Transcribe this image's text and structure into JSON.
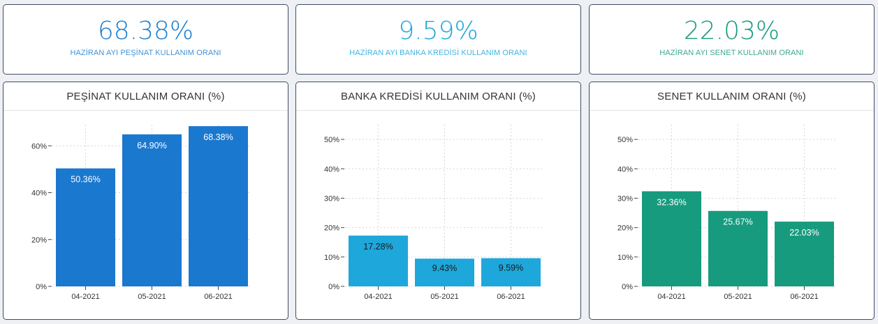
{
  "kpis": [
    {
      "value": "68.38%",
      "label": "HAZİRAN AYI PEŞİNAT KULLANIM ORANI",
      "color": "#1e7fd0"
    },
    {
      "value": "9.59%",
      "label": "HAZİRAN AYI BANKA KREDİSİ KULLANIM ORANI",
      "color": "#1ea7db"
    },
    {
      "value": "22.03%",
      "label": "HAZİRAN AYI SENET KULLANIM ORANI",
      "color": "#179b7e"
    }
  ],
  "chart_data": [
    {
      "type": "bar",
      "title": "PEŞİNAT KULLANIM ORANI (%)",
      "categories": [
        "04-2021",
        "05-2021",
        "06-2021"
      ],
      "values": [
        50.36,
        64.9,
        68.38
      ],
      "value_labels": [
        "50.36%",
        "64.90%",
        "68.38%"
      ],
      "yticks": [
        0,
        20,
        40,
        60
      ],
      "ytick_labels": [
        "0%",
        "20%",
        "40%",
        "60%"
      ],
      "ylim": [
        0,
        69
      ],
      "color": "#1b78cf",
      "grid": true
    },
    {
      "type": "bar",
      "title": "BANKA KREDİSİ KULLANIM ORANI (%)",
      "categories": [
        "04-2021",
        "05-2021",
        "06-2021"
      ],
      "values": [
        17.28,
        9.43,
        9.59
      ],
      "value_labels": [
        "17.28%",
        "9.43%",
        "9.59%"
      ],
      "yticks": [
        0,
        10,
        20,
        30,
        40,
        50
      ],
      "ytick_labels": [
        "0%",
        "10%",
        "20%",
        "30%",
        "40%",
        "50%"
      ],
      "ylim": [
        0,
        55
      ],
      "color": "#1ea7db",
      "grid": true
    },
    {
      "type": "bar",
      "title": "SENET KULLANIM ORANI (%)",
      "categories": [
        "04-2021",
        "05-2021",
        "06-2021"
      ],
      "values": [
        32.36,
        25.67,
        22.03
      ],
      "value_labels": [
        "32.36%",
        "25.67%",
        "22.03%"
      ],
      "yticks": [
        0,
        10,
        20,
        30,
        40,
        50
      ],
      "ytick_labels": [
        "0%",
        "10%",
        "20%",
        "30%",
        "40%",
        "50%"
      ],
      "ylim": [
        0,
        55
      ],
      "color": "#179b7e",
      "grid": true
    }
  ]
}
